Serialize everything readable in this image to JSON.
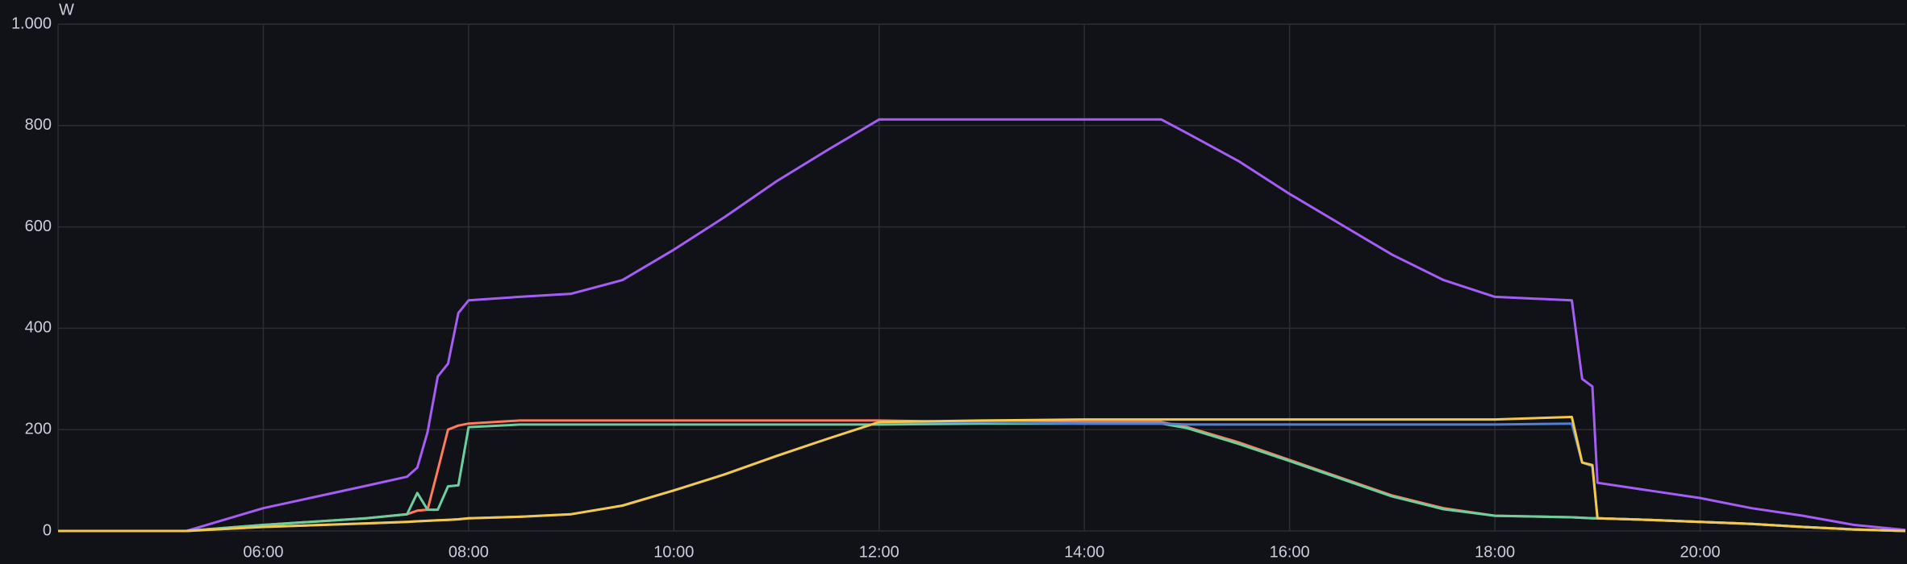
{
  "chart_data": {
    "type": "line",
    "y_label": "W",
    "x": [
      4,
      5.25,
      6,
      7,
      7.4,
      7.5,
      7.6,
      7.7,
      7.8,
      7.9,
      8,
      8.5,
      9,
      9.5,
      10,
      10.5,
      11,
      11.5,
      12,
      13,
      14,
      14.75,
      15,
      15.5,
      16,
      16.5,
      17,
      17.5,
      18,
      18.75,
      18.85,
      18.95,
      19,
      19.5,
      20,
      20.5,
      21,
      21.5,
      22
    ],
    "series": [
      {
        "color": "#a45ef5",
        "values": [
          0,
          0,
          45,
          89,
          107,
          125,
          195,
          305,
          330,
          430,
          455,
          462,
          468,
          495,
          555,
          620,
          690,
          752,
          812,
          812,
          812,
          812,
          785,
          730,
          665,
          605,
          545,
          495,
          462,
          455,
          300,
          285,
          95,
          80,
          65,
          45,
          30,
          12,
          2
        ]
      },
      {
        "color": "#ff7b5c",
        "values": [
          0,
          0,
          12,
          25,
          33,
          40,
          42,
          120,
          200,
          208,
          212,
          218,
          218,
          218,
          218,
          218,
          218,
          218,
          218,
          215,
          215,
          215,
          205,
          175,
          140,
          105,
          70,
          45,
          30,
          27,
          26,
          25,
          25,
          22,
          18,
          14,
          8,
          3,
          0
        ]
      },
      {
        "color": "#6ccf9e",
        "values": [
          0,
          0,
          12,
          25,
          33,
          75,
          42,
          42,
          88,
          90,
          205,
          210,
          210,
          210,
          210,
          210,
          210,
          210,
          210,
          212,
          212,
          212,
          203,
          172,
          138,
          103,
          68,
          43,
          30,
          27,
          26,
          25,
          25,
          22,
          18,
          14,
          8,
          3,
          0
        ]
      },
      {
        "color": "#4f7fd8",
        "values": [
          0,
          0,
          8,
          15,
          18,
          19,
          20,
          21,
          22,
          23,
          25,
          28,
          33,
          50,
          80,
          112,
          148,
          182,
          215,
          215,
          212,
          212,
          210,
          210,
          210,
          210,
          210,
          210,
          210,
          212,
          135,
          128,
          25,
          22,
          18,
          14,
          8,
          3,
          0
        ]
      },
      {
        "color": "#f2c94c",
        "values": [
          0,
          0,
          8,
          15,
          18,
          19,
          20,
          21,
          22,
          23,
          25,
          28,
          33,
          50,
          80,
          112,
          148,
          182,
          215,
          218,
          220,
          220,
          220,
          220,
          220,
          220,
          220,
          220,
          220,
          225,
          135,
          130,
          25,
          22,
          18,
          14,
          8,
          3,
          0
        ]
      }
    ],
    "xlim": [
      4,
      22
    ],
    "xticks": [
      {
        "value": 6,
        "label": "06:00"
      },
      {
        "value": 8,
        "label": "08:00"
      },
      {
        "value": 10,
        "label": "10:00"
      },
      {
        "value": 12,
        "label": "12:00"
      },
      {
        "value": 14,
        "label": "14:00"
      },
      {
        "value": 16,
        "label": "16:00"
      },
      {
        "value": 18,
        "label": "18:00"
      },
      {
        "value": 20,
        "label": "20:00"
      }
    ],
    "ylim": [
      0,
      1000
    ],
    "yticks": [
      0,
      200,
      400,
      600,
      800,
      {
        "value": 1000,
        "label": "1.000"
      }
    ],
    "grid": true
  }
}
